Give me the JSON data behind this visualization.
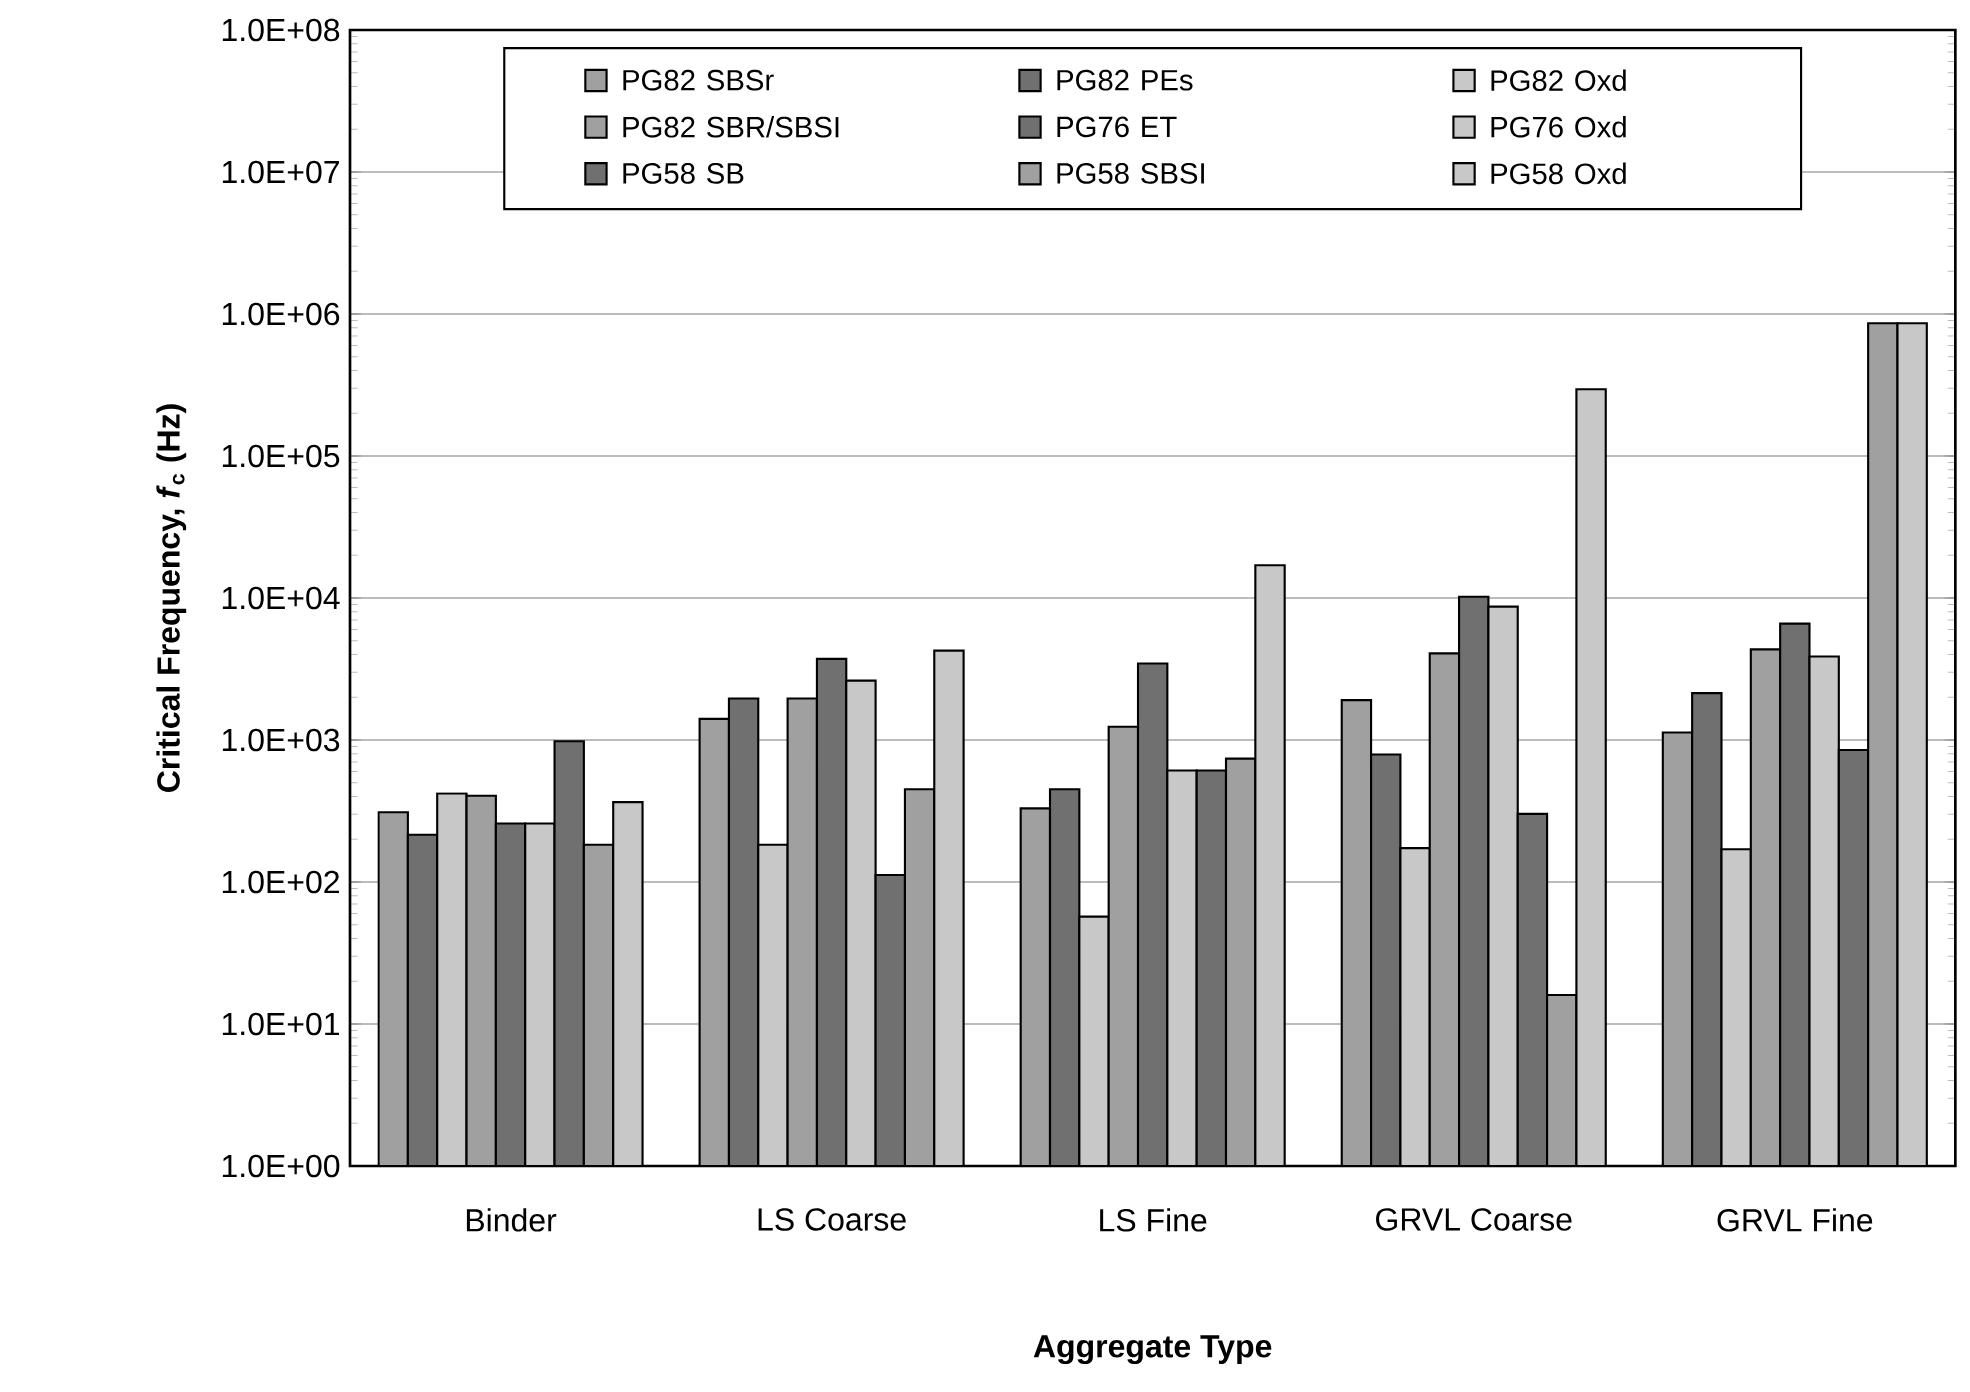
{
  "chart_data": {
    "type": "bar",
    "xlabel": "Aggregate Type",
    "ylabel": "Critical Frequency, *f*$_{c}$ (Hz)",
    "categories": [
      "Binder",
      "LS Coarse",
      "LS Fine",
      "GRVL Coarse",
      "GRVL Fine"
    ],
    "series": [
      {
        "name": "PG82 SBSr",
        "color": "#a0a0a0",
        "values": [
          310,
          1410,
          330,
          1910,
          1130
        ]
      },
      {
        "name": "PG82 PEs",
        "color": "#707070",
        "values": [
          215,
          1960,
          450,
          790,
          2140
        ]
      },
      {
        "name": "PG82 Oxd",
        "color": "#c8c8c8",
        "values": [
          420,
          183,
          57,
          173,
          170
        ]
      },
      {
        "name": "PG82 SBR/SBSI",
        "color": "#a0a0a0",
        "values": [
          405,
          1960,
          1240,
          4070,
          4350
        ]
      },
      {
        "name": "PG76 ET",
        "color": "#707070",
        "values": [
          258,
          3730,
          3460,
          10200,
          6600
        ]
      },
      {
        "name": "PG76 Oxd",
        "color": "#c8c8c8",
        "values": [
          258,
          2620,
          610,
          8700,
          3870
        ]
      },
      {
        "name": "PG58 SB",
        "color": "#707070",
        "values": [
          980,
          112,
          610,
          302,
          850
        ]
      },
      {
        "name": "PG58 SBSI",
        "color": "#a0a0a0",
        "values": [
          183,
          450,
          740,
          16,
          860000
        ]
      },
      {
        "name": "PG58 Oxd",
        "color": "#c8c8c8",
        "values": [
          365,
          4260,
          17000,
          295000,
          860000
        ]
      }
    ],
    "ylim": [
      1,
      100000000
    ],
    "yticks": [
      {
        "value": 1,
        "label": "1.0E+00"
      },
      {
        "value": 10,
        "label": "1.0E+01"
      },
      {
        "value": 100,
        "label": "1.0E+02"
      },
      {
        "value": 1000,
        "label": "1.0E+03"
      },
      {
        "value": 10000,
        "label": "1.0E+04"
      },
      {
        "value": 100000,
        "label": "1.0E+05"
      },
      {
        "value": 1000000,
        "label": "1.0E+06"
      },
      {
        "value": 10000000,
        "label": "1.0E+07"
      },
      {
        "value": 100000000,
        "label": "1.0E+08"
      }
    ],
    "log": "y",
    "grid": "y",
    "legend": "top"
  }
}
